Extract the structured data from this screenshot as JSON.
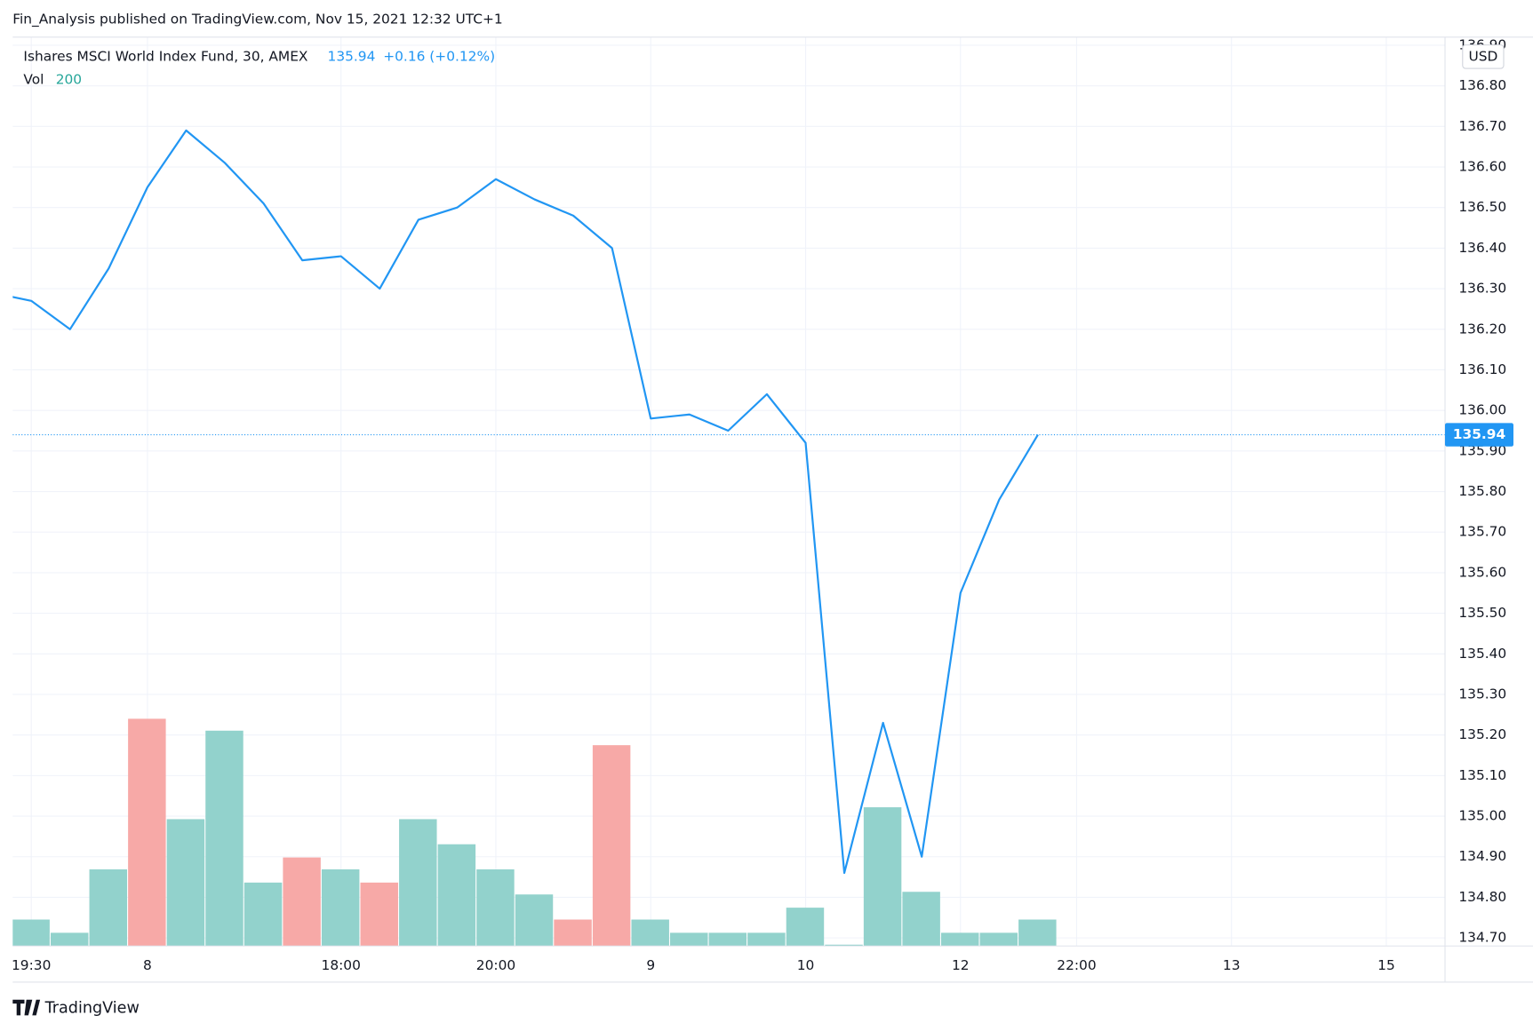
{
  "header": {
    "published": "Fin_Analysis published on TradingView.com, Nov 15, 2021 12:32 UTC+1",
    "brand": "TradingView"
  },
  "chart_data": {
    "type": "line",
    "title": "Ishares MSCI World Index Fund, 30, AMEX",
    "change": "+0.16 (+0.12%)",
    "currency": "USD",
    "volume_label": "Vol",
    "categories": [
      null,
      "19:30",
      null,
      null,
      "8",
      null,
      null,
      null,
      null,
      "18:00",
      null,
      null,
      null,
      "20:00",
      null,
      null,
      null,
      "9",
      null,
      null,
      null,
      "10",
      null,
      null,
      null,
      "12",
      null,
      null,
      "22:00",
      null,
      null,
      null,
      "13",
      null,
      null,
      null,
      "15",
      null
    ],
    "series": [
      {
        "name": "Price",
        "color": "#2196f3",
        "values": [
          136.29,
          136.27,
          136.2,
          136.35,
          136.55,
          136.69,
          136.61,
          136.51,
          136.37,
          136.38,
          136.3,
          136.47,
          136.5,
          136.57,
          136.52,
          136.48,
          136.4,
          135.98,
          135.99,
          135.95,
          136.04,
          135.92,
          134.86,
          135.23,
          134.9,
          135.55,
          135.78,
          135.94,
          null,
          null,
          null,
          null,
          null,
          null,
          null,
          null,
          null,
          null
        ]
      },
      {
        "name": "Vol",
        "type": "bar",
        "values": [
          null,
          200,
          100,
          580,
          1720,
          960,
          1630,
          480,
          670,
          580,
          480,
          960,
          770,
          580,
          390,
          200,
          1520,
          200,
          100,
          100,
          100,
          290,
          10,
          1050,
          410,
          100,
          100,
          200,
          null,
          null,
          null,
          null,
          null,
          null,
          null,
          null,
          null,
          null
        ],
        "bar_colors": [
          null,
          "#92d2cc",
          "#92d2cc",
          "#92d2cc",
          "#f7a9a7",
          "#92d2cc",
          "#92d2cc",
          "#92d2cc",
          "#f7a9a7",
          "#92d2cc",
          "#f7a9a7",
          "#92d2cc",
          "#92d2cc",
          "#92d2cc",
          "#92d2cc",
          "#f7a9a7",
          "#f7a9a7",
          "#92d2cc",
          "#92d2cc",
          "#92d2cc",
          "#92d2cc",
          "#92d2cc",
          "#92d2cc",
          "#92d2cc",
          "#92d2cc",
          "#92d2cc",
          "#92d2cc",
          "#92d2cc",
          null,
          null,
          null,
          null,
          null,
          null,
          null,
          null,
          null,
          null
        ]
      }
    ],
    "ylim": [
      134.68,
      136.92
    ],
    "yticks": [
      {
        "value": 134.7,
        "label": "134.70"
      },
      {
        "value": 134.8,
        "label": "134.80"
      },
      {
        "value": 134.9,
        "label": "134.90"
      },
      {
        "value": 135.0,
        "label": "135.00"
      },
      {
        "value": 135.1,
        "label": "135.10"
      },
      {
        "value": 135.2,
        "label": "135.20"
      },
      {
        "value": 135.3,
        "label": "135.30"
      },
      {
        "value": 135.4,
        "label": "135.40"
      },
      {
        "value": 135.5,
        "label": "135.50"
      },
      {
        "value": 135.6,
        "label": "135.60"
      },
      {
        "value": 135.7,
        "label": "135.70"
      },
      {
        "value": 135.8,
        "label": "135.80"
      },
      {
        "value": 135.9,
        "label": "135.90"
      },
      {
        "value": 136.0,
        "label": "136.00"
      },
      {
        "value": 136.1,
        "label": "136.10"
      },
      {
        "value": 136.2,
        "label": "136.20"
      },
      {
        "value": 136.3,
        "label": "136.30"
      },
      {
        "value": 136.4,
        "label": "136.40"
      },
      {
        "value": 136.5,
        "label": "136.50"
      },
      {
        "value": 136.6,
        "label": "136.60"
      },
      {
        "value": 136.7,
        "label": "136.70"
      },
      {
        "value": 136.8,
        "label": "136.80"
      },
      {
        "value": 136.9,
        "label": "136.90"
      }
    ],
    "grid": true
  }
}
